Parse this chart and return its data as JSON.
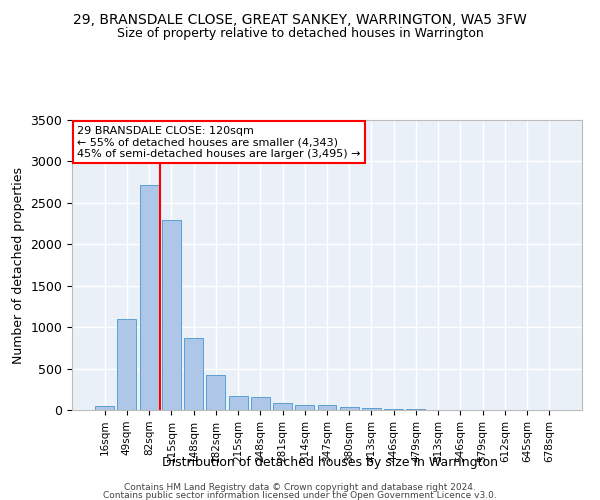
{
  "title1": "29, BRANSDALE CLOSE, GREAT SANKEY, WARRINGTON, WA5 3FW",
  "title2": "Size of property relative to detached houses in Warrington",
  "xlabel": "Distribution of detached houses by size in Warrington",
  "ylabel": "Number of detached properties",
  "categories": [
    "16sqm",
    "49sqm",
    "82sqm",
    "115sqm",
    "148sqm",
    "182sqm",
    "215sqm",
    "248sqm",
    "281sqm",
    "314sqm",
    "347sqm",
    "380sqm",
    "413sqm",
    "446sqm",
    "479sqm",
    "513sqm",
    "546sqm",
    "579sqm",
    "612sqm",
    "645sqm",
    "678sqm"
  ],
  "values": [
    50,
    1100,
    2720,
    2290,
    870,
    420,
    170,
    160,
    90,
    60,
    55,
    35,
    30,
    15,
    10,
    5,
    5,
    5,
    2,
    1,
    1
  ],
  "bar_color": "#aec6e8",
  "bar_edge_color": "#5a9fd4",
  "vline_color": "red",
  "annotation_line1": "29 BRANSDALE CLOSE: 120sqm",
  "annotation_line2": "← 55% of detached houses are smaller (4,343)",
  "annotation_line3": "45% of semi-detached houses are larger (3,495) →",
  "annotation_box_color": "white",
  "annotation_box_edge_color": "red",
  "bg_color": "#eaf0f8",
  "grid_color": "white",
  "footnote_line1": "Contains HM Land Registry data © Crown copyright and database right 2024.",
  "footnote_line2": "Contains public sector information licensed under the Open Government Licence v3.0.",
  "ylim": [
    0,
    3500
  ],
  "vline_index": 3
}
